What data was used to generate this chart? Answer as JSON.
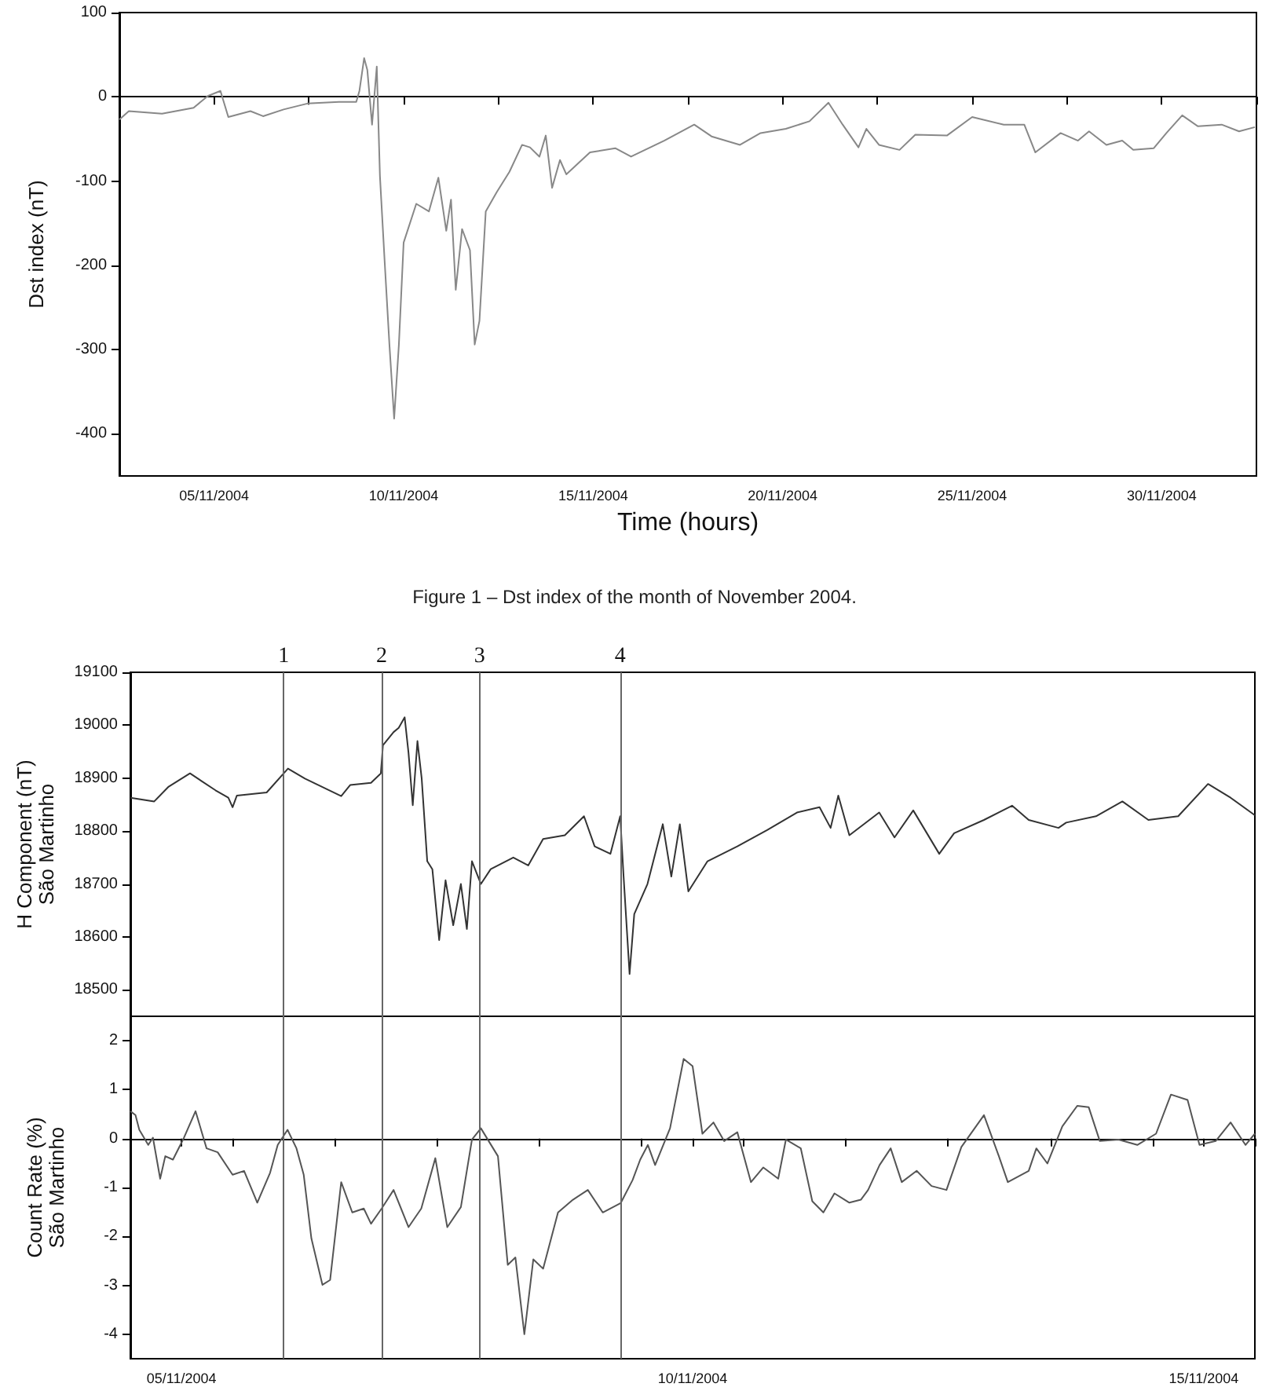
{
  "chart_data": [
    {
      "type": "line",
      "ylabel": "Dst index (nT)",
      "xlabel": "Time (hours)",
      "annotations": [
        "Figure 1 – Dst index of the month of November 2004."
      ],
      "xlim": [
        "2004-11-03T00:00",
        "2004-12-03T00:00"
      ],
      "ylim": [
        -450,
        100
      ],
      "yticks": [
        -400,
        -300,
        -200,
        -100,
        0,
        100
      ],
      "xticks": [
        {
          "value": "2004-11-03T00:00",
          "label": null
        },
        {
          "value": "2004-11-05T12:00",
          "label": "05/11/2004"
        },
        {
          "value": "2004-11-08T00:00",
          "label": null
        },
        {
          "value": "2004-11-10T12:00",
          "label": "10/11/2004"
        },
        {
          "value": "2004-11-13T00:00",
          "label": null
        },
        {
          "value": "2004-11-15T12:00",
          "label": "15/11/2004"
        },
        {
          "value": "2004-11-18T00:00",
          "label": null
        },
        {
          "value": "2004-11-20T12:00",
          "label": "20/11/2004"
        },
        {
          "value": "2004-11-23T00:00",
          "label": null
        },
        {
          "value": "2004-11-25T12:00",
          "label": "25/11/2004"
        },
        {
          "value": "2004-11-28T00:00",
          "label": null
        },
        {
          "value": "2004-11-30T12:00",
          "label": "30/11/2004"
        },
        {
          "value": "2004-12-03T00:00",
          "label": null
        }
      ],
      "series": [
        {
          "color": "#888888",
          "x": [
            "2004-11-03T00:00",
            "2004-11-03T06:00",
            "2004-11-04T03:00",
            "2004-11-04T23:00",
            "2004-11-05T08:00",
            "2004-11-05T16:00",
            "2004-11-05T21:00",
            "2004-11-06T11:00",
            "2004-11-06T19:00",
            "2004-11-07T08:00",
            "2004-11-07T23:00",
            "2004-11-08T19:00",
            "2004-11-09T06:00",
            "2004-11-09T08:00",
            "2004-11-09T11:00",
            "2004-11-09T13:00",
            "2004-11-09T16:00",
            "2004-11-09T19:00",
            "2004-11-09T21:00",
            "2004-11-10T00:00",
            "2004-11-10T03:00",
            "2004-11-10T06:00",
            "2004-11-10T09:00",
            "2004-11-10T12:00",
            "2004-11-10T20:00",
            "2004-11-11T04:00",
            "2004-11-11T10:00",
            "2004-11-11T15:00",
            "2004-11-11T18:00",
            "2004-11-11T21:00",
            "2004-11-12T01:00",
            "2004-11-12T06:00",
            "2004-11-12T09:00",
            "2004-11-12T12:00",
            "2004-11-12T16:00",
            "2004-11-12T23:00",
            "2004-11-13T07:00",
            "2004-11-13T15:00",
            "2004-11-13T20:00",
            "2004-11-14T02:00",
            "2004-11-14T06:00",
            "2004-11-14T10:00",
            "2004-11-14T15:00",
            "2004-11-14T19:00",
            "2004-11-15T10:00",
            "2004-11-16T02:00",
            "2004-11-16T12:00",
            "2004-11-17T09:00",
            "2004-11-18T04:00",
            "2004-11-18T15:00",
            "2004-11-19T09:00",
            "2004-11-19T22:00",
            "2004-11-20T14:00",
            "2004-11-21T05:00",
            "2004-11-21T17:00",
            "2004-11-22T02:00",
            "2004-11-22T12:00",
            "2004-11-22T17:00",
            "2004-11-23T01:00",
            "2004-11-23T14:00",
            "2004-11-24T00:00",
            "2004-11-24T20:00",
            "2004-11-25T12:00",
            "2004-11-26T08:00",
            "2004-11-26T21:00",
            "2004-11-27T04:00",
            "2004-11-27T20:00",
            "2004-11-28T07:00",
            "2004-11-28T14:00",
            "2004-11-29T01:00",
            "2004-11-29T11:00",
            "2004-11-29T18:00",
            "2004-11-30T07:00",
            "2004-11-30T15:00",
            "2004-12-01T01:00",
            "2004-12-01T11:00",
            "2004-12-02T02:00",
            "2004-12-02T13:00",
            "2004-12-02T23:00"
          ],
          "values": [
            -27,
            -17,
            -20,
            -13,
            1,
            7,
            -24,
            -17,
            -23,
            -15,
            -8,
            -6,
            -6,
            7,
            46,
            32,
            -33,
            36,
            -94,
            -196,
            -294,
            -382,
            -294,
            -173,
            -127,
            -136,
            -96,
            -159,
            -122,
            -229,
            -157,
            -182,
            -294,
            -266,
            -136,
            -113,
            -89,
            -57,
            -60,
            -71,
            -46,
            -108,
            -75,
            -92,
            -66,
            -61,
            -71,
            -52,
            -33,
            -47,
            -57,
            -43,
            -38,
            -29,
            -7,
            -33,
            -60,
            -38,
            -57,
            -63,
            -45,
            -46,
            -24,
            -33,
            -33,
            -66,
            -43,
            -52,
            -41,
            -57,
            -52,
            -63,
            -61,
            -43,
            -22,
            -35,
            -33,
            -41,
            -36
          ]
        }
      ]
    },
    {
      "type": "line",
      "ylabel": "H Component (nT)\nSão Martinho",
      "tick_labels": "y",
      "xlim": [
        "2004-11-05T00:00",
        "2004-11-16T00:00"
      ],
      "xticks": [
        {
          "value": "2004-11-05T00:00",
          "label": null
        },
        {
          "value": "2004-11-06T00:00",
          "label": null
        },
        {
          "value": "2004-11-07T00:00",
          "label": null
        },
        {
          "value": "2004-11-08T00:00",
          "label": null
        },
        {
          "value": "2004-11-09T00:00",
          "label": null
        },
        {
          "value": "2004-11-10T00:00",
          "label": null
        },
        {
          "value": "2004-11-11T00:00",
          "label": null
        },
        {
          "value": "2004-11-12T00:00",
          "label": null
        },
        {
          "value": "2004-11-13T00:00",
          "label": null
        },
        {
          "value": "2004-11-14T00:00",
          "label": null
        },
        {
          "value": "2004-11-15T00:00",
          "label": null
        },
        {
          "value": "2004-11-16T00:00",
          "label": null
        }
      ],
      "ylim": [
        18450,
        19100
      ],
      "yticks": [
        18500,
        18600,
        18700,
        18800,
        18900,
        19000,
        19100
      ],
      "ref_lines": [
        {
          "axis": "x",
          "value": "2004-11-06T12:00"
        },
        {
          "axis": "x",
          "value": "2004-11-07T11:00"
        },
        {
          "axis": "x",
          "value": "2004-11-08T10:00"
        },
        {
          "axis": "x",
          "value": "2004-11-09T19:00"
        }
      ],
      "annotations": [
        {
          "text": "1",
          "x": "2004-11-06T12:00",
          "y": 19100
        },
        {
          "text": "2",
          "x": "2004-11-07T11:00",
          "y": 19100
        },
        {
          "text": "3",
          "x": "2004-11-08T10:00",
          "y": 19100
        },
        {
          "text": "4",
          "x": "2004-11-09T19:00",
          "y": 19100
        }
      ],
      "series": [
        {
          "color": "#333333",
          "x": [
            "2004-11-05T00:00",
            "2004-11-05T05:36",
            "2004-11-05T09:00",
            "2004-11-05T14:00",
            "2004-11-05T20:00",
            "2004-11-05T23:00",
            "2004-11-06T00:00",
            "2004-11-06T01:00",
            "2004-11-06T08:00",
            "2004-11-06T13:00",
            "2004-11-06T17:00",
            "2004-11-07T01:30",
            "2004-11-07T03:36",
            "2004-11-07T08:30",
            "2004-11-07T10:48",
            "2004-11-07T11:18",
            "2004-11-07T13:48",
            "2004-11-07T15:00",
            "2004-11-07T16:24",
            "2004-11-07T17:18",
            "2004-11-07T18:18",
            "2004-11-07T19:24",
            "2004-11-07T20:24",
            "2004-11-07T21:42",
            "2004-11-07T22:54",
            "2004-11-08T00:30",
            "2004-11-08T02:00",
            "2004-11-08T03:48",
            "2004-11-08T05:36",
            "2004-11-08T07:00",
            "2004-11-08T08:12",
            "2004-11-08T10:18",
            "2004-11-08T12:36",
            "2004-11-08T17:54",
            "2004-11-08T21:24",
            "2004-11-09T00:54",
            "2004-11-09T06:00",
            "2004-11-09T10:30",
            "2004-11-09T13:00",
            "2004-11-09T16:42",
            "2004-11-09T19:00",
            "2004-11-09T19:48",
            "2004-11-09T21:12",
            "2004-11-09T22:18",
            "2004-11-10T01:24",
            "2004-11-10T05:00",
            "2004-11-10T07:00",
            "2004-11-10T09:00",
            "2004-11-10T11:00",
            "2004-11-10T15:30",
            "2004-11-10T22:30",
            "2004-11-11T05:30",
            "2004-11-11T12:30",
            "2004-11-11T17:48",
            "2004-11-11T20:24",
            "2004-11-11T22:12",
            "2004-11-12T00:48",
            "2004-11-12T07:48",
            "2004-11-12T11:24",
            "2004-11-12T15:48",
            "2004-11-12T21:54",
            "2004-11-13T01:24",
            "2004-11-13T08:24",
            "2004-11-13T15:00",
            "2004-11-13T18:54",
            "2004-11-14T01:54",
            "2004-11-14T03:42",
            "2004-11-14T10:42",
            "2004-11-14T16:54",
            "2004-11-14T23:00",
            "2004-11-15T06:00",
            "2004-11-15T13:00",
            "2004-11-15T18:18",
            "2004-11-16T00:00"
          ],
          "values": [
            18863,
            18856,
            18884,
            18909,
            18877,
            18863,
            18845,
            18867,
            18873,
            18918,
            18899,
            18866,
            18887,
            18891,
            18909,
            18962,
            18987,
            18995,
            19015,
            18948,
            18849,
            18970,
            18899,
            18743,
            18728,
            18594,
            18707,
            18622,
            18700,
            18615,
            18743,
            18700,
            18728,
            18750,
            18735,
            18785,
            18792,
            18828,
            18771,
            18757,
            18828,
            18714,
            18530,
            18643,
            18700,
            18813,
            18714,
            18813,
            18686,
            18743,
            18771,
            18802,
            18835,
            18845,
            18806,
            18867,
            18792,
            18835,
            18788,
            18839,
            18757,
            18796,
            18821,
            18848,
            18821,
            18806,
            18816,
            18828,
            18856,
            18821,
            18828,
            18889,
            18863,
            18830
          ]
        }
      ]
    },
    {
      "type": "line",
      "ylabel": "Count Rate (%)\nSão Martinho",
      "xlim": [
        "2004-11-05T00:00",
        "2004-11-16T00:00"
      ],
      "xticks": [
        {
          "value": "2004-11-05T00:00",
          "label": null
        },
        {
          "value": "2004-11-05T12:00",
          "label": "05/11/2004"
        },
        {
          "value": "2004-11-06T00:00",
          "label": null
        },
        {
          "value": "2004-11-07T00:00",
          "label": null
        },
        {
          "value": "2004-11-08T00:00",
          "label": null
        },
        {
          "value": "2004-11-09T00:00",
          "label": null
        },
        {
          "value": "2004-11-10T00:00",
          "label": null
        },
        {
          "value": "2004-11-10T12:00",
          "label": "10/11/2004"
        },
        {
          "value": "2004-11-11T00:00",
          "label": null
        },
        {
          "value": "2004-11-12T00:00",
          "label": null
        },
        {
          "value": "2004-11-13T00:00",
          "label": null
        },
        {
          "value": "2004-11-14T00:00",
          "label": null
        },
        {
          "value": "2004-11-15T00:00",
          "label": null
        },
        {
          "value": "2004-11-15T12:00",
          "label": "15/11/2004"
        },
        {
          "value": "2004-11-16T00:00",
          "label": null
        }
      ],
      "ylim": [
        -4.5,
        2.5
      ],
      "yticks": [
        -4,
        -3,
        -2,
        -1,
        0,
        1,
        2
      ],
      "ref_lines": [
        {
          "axis": "x",
          "value": "2004-11-06T12:00"
        },
        {
          "axis": "x",
          "value": "2004-11-07T11:00"
        },
        {
          "axis": "x",
          "value": "2004-11-08T10:00"
        },
        {
          "axis": "x",
          "value": "2004-11-09T19:00"
        }
      ],
      "series": [
        {
          "color": "#555555",
          "x": [
            "2004-11-05T00:00",
            "2004-11-05T01:12",
            "2004-11-05T02:06",
            "2004-11-05T04:12",
            "2004-11-05T05:18",
            "2004-11-05T07:00",
            "2004-11-05T08:12",
            "2004-11-05T10:00",
            "2004-11-05T12:36",
            "2004-11-05T15:18",
            "2004-11-05T17:54",
            "2004-11-05T20:30",
            "2004-11-06T00:00",
            "2004-11-06T02:42",
            "2004-11-06T05:48",
            "2004-11-06T08:48",
            "2004-11-06T10:36",
            "2004-11-06T12:54",
            "2004-11-06T15:00",
            "2004-11-06T16:42",
            "2004-11-06T18:30",
            "2004-11-06T21:06",
            "2004-11-06T22:54",
            "2004-11-07T01:30",
            "2004-11-07T04:06",
            "2004-11-07T06:48",
            "2004-11-07T08:30",
            "2004-11-07T11:00",
            "2004-11-07T13:48",
            "2004-11-07T17:18",
            "2004-11-07T20:18",
            "2004-11-07T23:36",
            "2004-11-08T02:24",
            "2004-11-08T05:36",
            "2004-11-08T08:12",
            "2004-11-08T10:18",
            "2004-11-08T14:18",
            "2004-11-08T16:36",
            "2004-11-08T18:24",
            "2004-11-08T20:30",
            "2004-11-08T22:36",
            "2004-11-09T00:54",
            "2004-11-09T04:24",
            "2004-11-09T07:54",
            "2004-11-09T11:24",
            "2004-11-09T14:54",
            "2004-11-09T19:06",
            "2004-11-09T21:54",
            "2004-11-09T23:42",
            "2004-11-10T01:30",
            "2004-11-10T03:12",
            "2004-11-10T06:42",
            "2004-11-10T09:54",
            "2004-11-10T12:00",
            "2004-11-10T14:18",
            "2004-11-10T16:54",
            "2004-11-10T19:24",
            "2004-11-10T22:30",
            "2004-11-11T01:42",
            "2004-11-11T04:36",
            "2004-11-11T08:06",
            "2004-11-11T09:54",
            "2004-11-11T13:24",
            "2004-11-11T16:06",
            "2004-11-11T18:42",
            "2004-11-11T21:18",
            "2004-11-12T00:48",
            "2004-11-12T03:30",
            "2004-11-12T05:12",
            "2004-11-12T07:54",
            "2004-11-12T10:30",
            "2004-11-12T13:06",
            "2004-11-12T16:36",
            "2004-11-12T20:06",
            "2004-11-12T23:36",
            "2004-11-13T03:06",
            "2004-11-13T08:24",
            "2004-11-13T11:54",
            "2004-11-13T14:00",
            "2004-11-13T18:54",
            "2004-11-13T20:42",
            "2004-11-13T23:18",
            "2004-11-14T02:48",
            "2004-11-14T06:18",
            "2004-11-14T09:00",
            "2004-11-14T11:36",
            "2004-11-14T16:00",
            "2004-11-14T20:24",
            "2004-11-15T00:48",
            "2004-11-15T04:18",
            "2004-11-15T08:12",
            "2004-11-15T11:00",
            "2004-11-15T14:48",
            "2004-11-15T18:18",
            "2004-11-15T21:48",
            "2004-11-16T00:00"
          ],
          "values": [
            0.56,
            0.48,
            0.18,
            -0.13,
            0.02,
            -0.82,
            -0.36,
            -0.43,
            0.02,
            0.56,
            -0.2,
            -0.28,
            -0.74,
            -0.66,
            -1.31,
            -0.7,
            -0.13,
            0.18,
            -0.2,
            -0.74,
            -2.04,
            -2.99,
            -2.89,
            -0.89,
            -1.51,
            -1.43,
            -1.74,
            -1.43,
            -1.05,
            -1.81,
            -1.43,
            -0.4,
            -1.81,
            -1.4,
            -0.02,
            0.21,
            -0.36,
            -2.58,
            -2.43,
            -4.0,
            -2.47,
            -2.66,
            -1.51,
            -1.25,
            -1.05,
            -1.51,
            -1.32,
            -0.85,
            -0.43,
            -0.13,
            -0.54,
            0.21,
            1.63,
            1.48,
            0.1,
            0.33,
            -0.05,
            0.13,
            -0.89,
            -0.59,
            -0.82,
            -0.02,
            -0.2,
            -1.28,
            -1.51,
            -1.12,
            -1.31,
            -1.25,
            -1.05,
            -0.54,
            -0.2,
            -0.89,
            -0.66,
            -0.97,
            -1.05,
            -0.17,
            0.48,
            -0.36,
            -0.89,
            -0.66,
            -0.2,
            -0.51,
            0.25,
            0.67,
            0.64,
            -0.05,
            -0.02,
            -0.13,
            0.1,
            0.9,
            0.79,
            -0.13,
            -0.05,
            0.33,
            -0.13,
            0.1
          ]
        }
      ]
    }
  ]
}
